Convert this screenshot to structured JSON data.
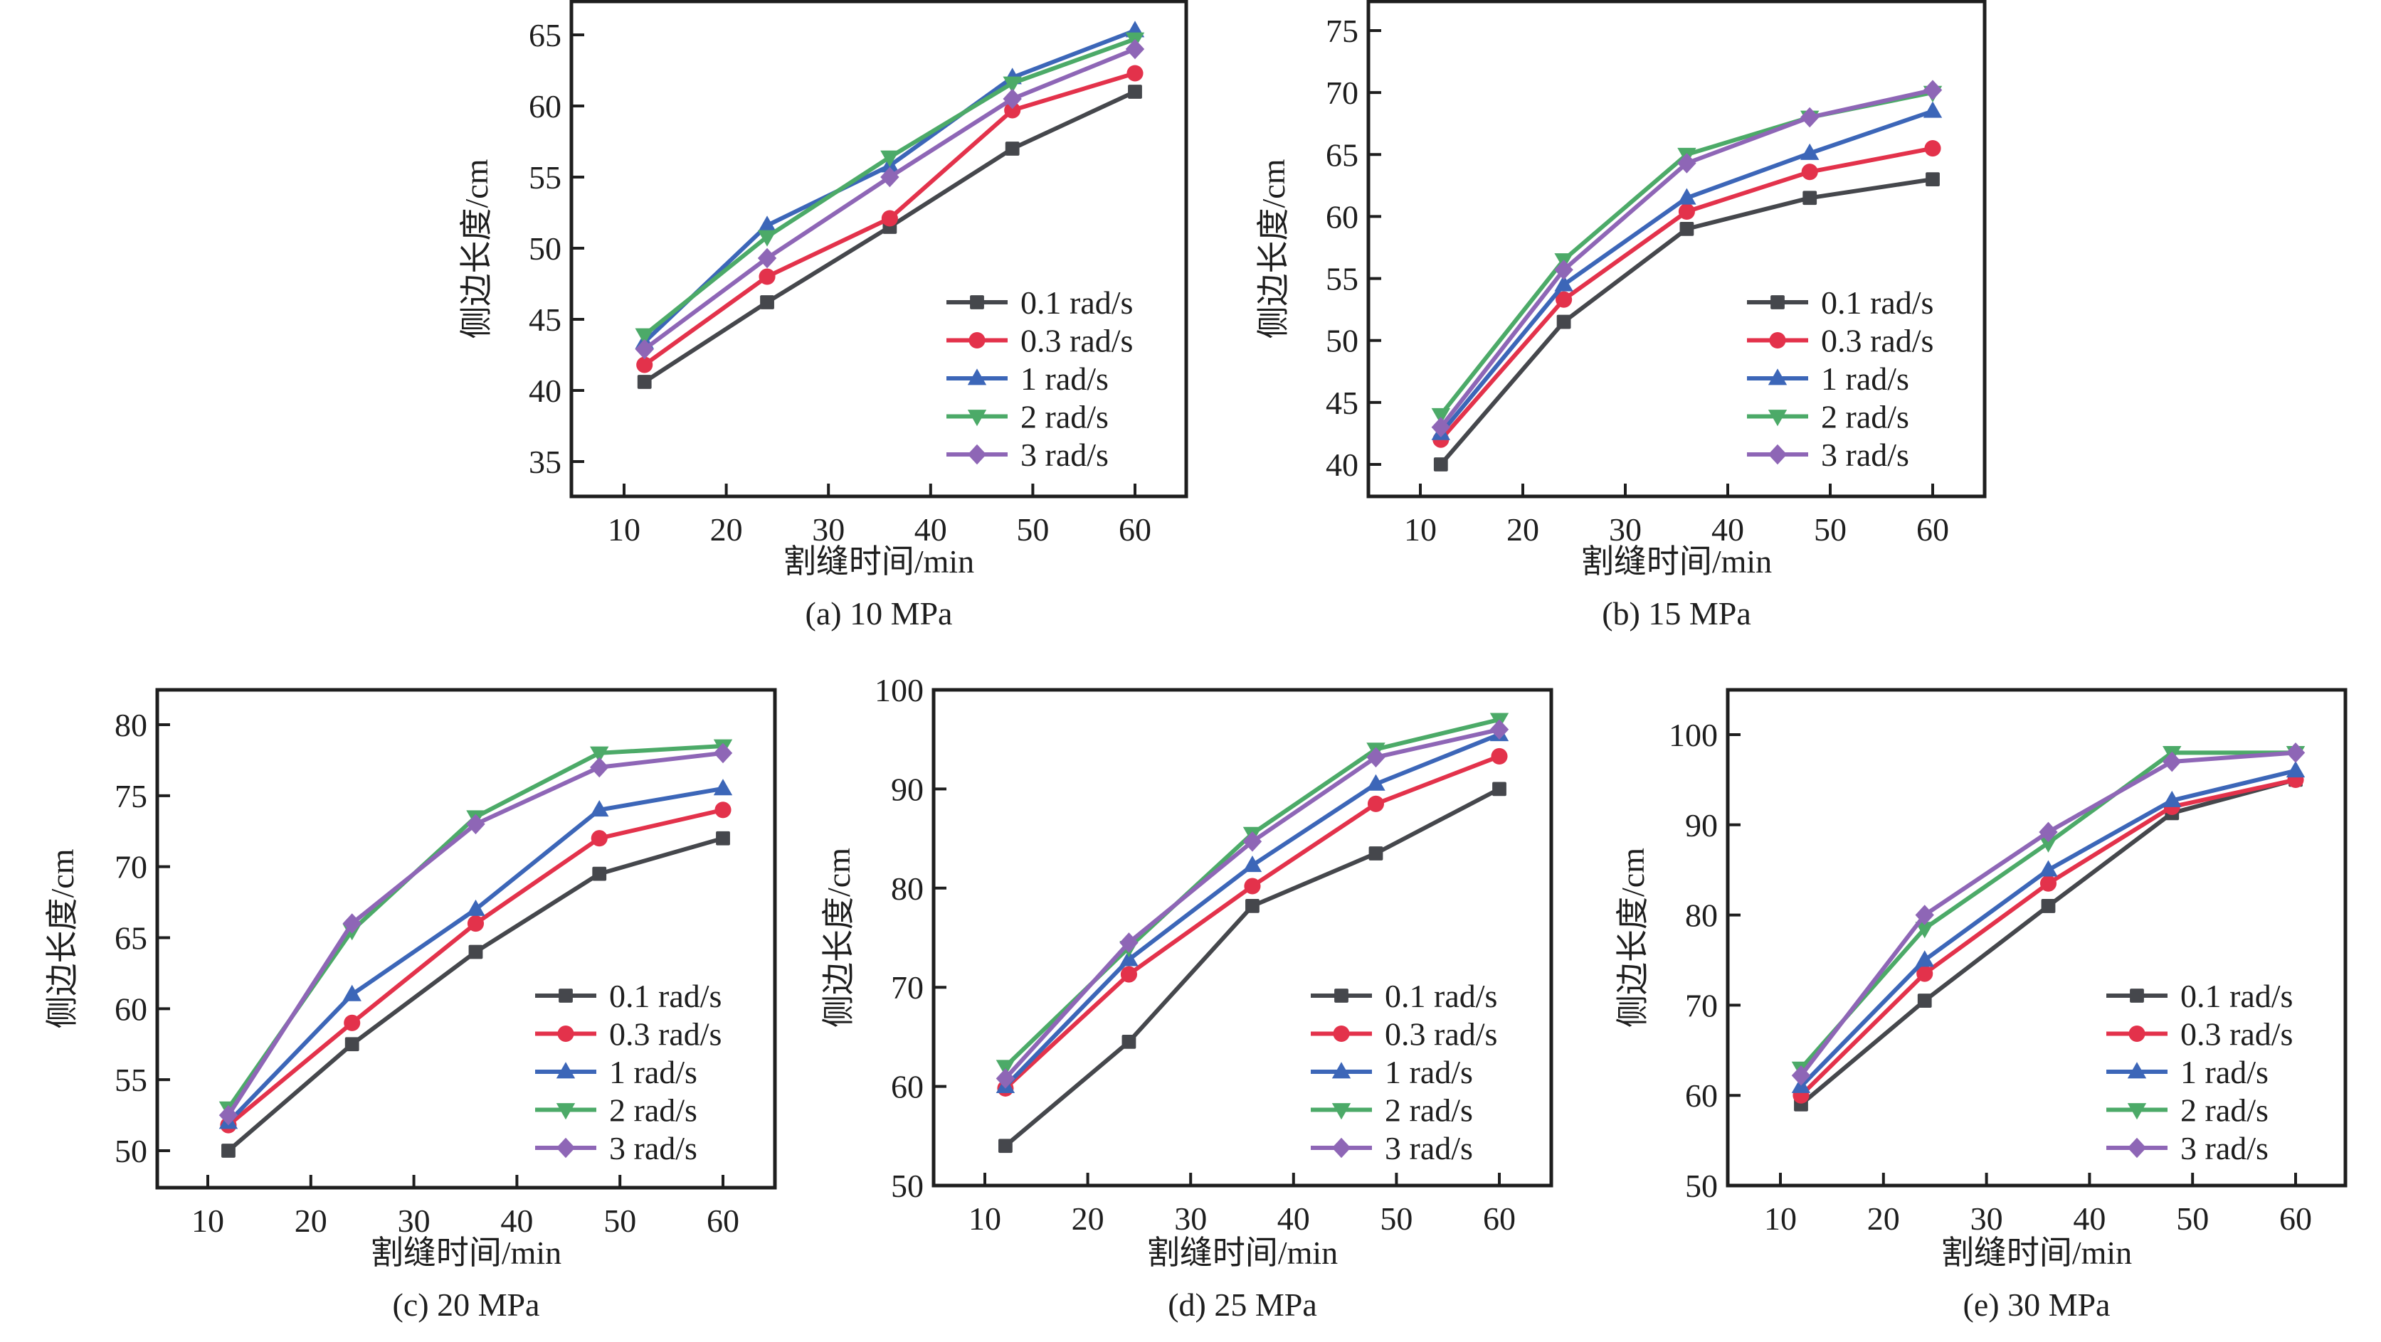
{
  "figure": {
    "series_styles": [
      {
        "name": "0.1 rad/s",
        "color": "#45474c",
        "marker": "square"
      },
      {
        "name": "0.3 rad/s",
        "color": "#e3324b",
        "marker": "circle"
      },
      {
        "name": "1 rad/s",
        "color": "#3c66b8",
        "marker": "triangle-up"
      },
      {
        "name": "2 rad/s",
        "color": "#4caa68",
        "marker": "triangle-down"
      },
      {
        "name": "3 rad/s",
        "color": "#8e66b6",
        "marker": "diamond"
      }
    ]
  },
  "chart_data": [
    {
      "id": "a",
      "type": "line",
      "title": "(a) 10 MPa",
      "xlabel": "割缝时间/min",
      "ylabel": "侧边长度/cm",
      "x": [
        12,
        24,
        36,
        48,
        60
      ],
      "xticks": [
        10,
        20,
        30,
        40,
        50,
        60
      ],
      "yticks": [
        35,
        40,
        45,
        50,
        55,
        60,
        65
      ],
      "xlim": [
        5,
        65
      ],
      "ylim": [
        32,
        67
      ],
      "grid": false,
      "legend": "bottom-right",
      "series": [
        {
          "name": "0.1 rad/s",
          "values": [
            40.6,
            46.2,
            51.5,
            57.0,
            61.0
          ]
        },
        {
          "name": "0.3 rad/s",
          "values": [
            41.8,
            48.0,
            52.1,
            59.7,
            62.3
          ]
        },
        {
          "name": "1 rad/s",
          "values": [
            43.4,
            51.6,
            55.8,
            62.0,
            65.3
          ]
        },
        {
          "name": "2 rad/s",
          "values": [
            43.9,
            50.8,
            56.4,
            61.6,
            64.7
          ]
        },
        {
          "name": "3 rad/s",
          "values": [
            42.9,
            49.3,
            55.0,
            60.5,
            64.0
          ]
        }
      ]
    },
    {
      "id": "b",
      "type": "line",
      "title": "(b) 15 MPa",
      "xlabel": "割缝时间/min",
      "ylabel": "侧边长度/cm",
      "x": [
        12,
        24,
        36,
        48,
        60
      ],
      "xticks": [
        10,
        20,
        30,
        40,
        50,
        60
      ],
      "yticks": [
        40,
        45,
        50,
        55,
        60,
        65,
        70,
        75
      ],
      "xlim": [
        5,
        65
      ],
      "ylim": [
        37.5,
        77.5
      ],
      "grid": false,
      "legend": "bottom-right",
      "series": [
        {
          "name": "0.1 rad/s",
          "values": [
            40.0,
            51.5,
            59.0,
            61.5,
            63.0
          ]
        },
        {
          "name": "0.3 rad/s",
          "values": [
            42.0,
            53.3,
            60.4,
            63.6,
            65.5
          ]
        },
        {
          "name": "1 rad/s",
          "values": [
            42.5,
            54.5,
            61.5,
            65.1,
            68.5
          ]
        },
        {
          "name": "2 rad/s",
          "values": [
            44.0,
            56.5,
            65.0,
            68.0,
            70.0
          ]
        },
        {
          "name": "3 rad/s",
          "values": [
            43.0,
            55.7,
            64.3,
            68.0,
            70.2
          ]
        }
      ]
    },
    {
      "id": "c",
      "type": "line",
      "title": "(c) 20 MPa",
      "xlabel": "割缝时间/min",
      "ylabel": "侧边长度/cm",
      "x": [
        12,
        24,
        36,
        48,
        60
      ],
      "xticks": [
        10,
        20,
        30,
        40,
        50,
        60
      ],
      "yticks": [
        50,
        55,
        60,
        65,
        70,
        75,
        80
      ],
      "xlim": [
        5,
        65
      ],
      "ylim": [
        47.5,
        82.5
      ],
      "grid": false,
      "legend": "bottom-right",
      "series": [
        {
          "name": "0.1 rad/s",
          "values": [
            50.0,
            57.5,
            64.0,
            69.5,
            72.0
          ]
        },
        {
          "name": "0.3 rad/s",
          "values": [
            51.8,
            59.0,
            66.0,
            72.0,
            74.0
          ]
        },
        {
          "name": "1 rad/s",
          "values": [
            52.0,
            61.0,
            67.0,
            74.0,
            75.5
          ]
        },
        {
          "name": "2 rad/s",
          "values": [
            53.0,
            65.5,
            73.5,
            78.0,
            78.5
          ]
        },
        {
          "name": "3 rad/s",
          "values": [
            52.5,
            66.0,
            73.0,
            77.0,
            78.0
          ]
        }
      ]
    },
    {
      "id": "d",
      "type": "line",
      "title": "(d) 25 MPa",
      "xlabel": "割缝时间/min",
      "ylabel": "侧边长度/cm",
      "x": [
        12,
        24,
        36,
        48,
        60
      ],
      "xticks": [
        10,
        20,
        30,
        40,
        50,
        60
      ],
      "yticks": [
        50,
        60,
        70,
        80,
        90,
        100
      ],
      "xlim": [
        5,
        65
      ],
      "ylim": [
        50,
        100
      ],
      "grid": false,
      "legend": "bottom-right",
      "series": [
        {
          "name": "0.1 rad/s",
          "values": [
            54.0,
            64.5,
            78.2,
            83.5,
            90.0
          ]
        },
        {
          "name": "0.3 rad/s",
          "values": [
            59.8,
            71.3,
            80.2,
            88.5,
            93.3
          ]
        },
        {
          "name": "1 rad/s",
          "values": [
            60.0,
            72.8,
            82.3,
            90.5,
            95.5
          ]
        },
        {
          "name": "2 rad/s",
          "values": [
            62.0,
            74.0,
            85.5,
            94.0,
            97.0
          ]
        },
        {
          "name": "3 rad/s",
          "values": [
            60.8,
            74.5,
            84.7,
            93.2,
            96.0
          ]
        }
      ]
    },
    {
      "id": "e",
      "type": "line",
      "title": "(e) 30 MPa",
      "xlabel": "割缝时间/min",
      "ylabel": "侧边长度/cm",
      "x": [
        12,
        24,
        36,
        48,
        60
      ],
      "xticks": [
        10,
        20,
        30,
        40,
        50,
        60
      ],
      "yticks": [
        50,
        60,
        70,
        80,
        90,
        100
      ],
      "xlim": [
        5,
        65
      ],
      "ylim": [
        50,
        105
      ],
      "grid": false,
      "legend": "bottom-right",
      "series": [
        {
          "name": "0.1 rad/s",
          "values": [
            59.0,
            70.5,
            81.0,
            91.3,
            95.0
          ]
        },
        {
          "name": "0.3 rad/s",
          "values": [
            60.0,
            73.5,
            83.5,
            92.0,
            95.0
          ]
        },
        {
          "name": "1 rad/s",
          "values": [
            61.0,
            75.0,
            85.0,
            92.7,
            96.0
          ]
        },
        {
          "name": "2 rad/s",
          "values": [
            63.0,
            78.5,
            88.0,
            98.0,
            98.0
          ]
        },
        {
          "name": "3 rad/s",
          "values": [
            62.2,
            80.0,
            89.2,
            97.0,
            98.0
          ]
        }
      ]
    }
  ]
}
